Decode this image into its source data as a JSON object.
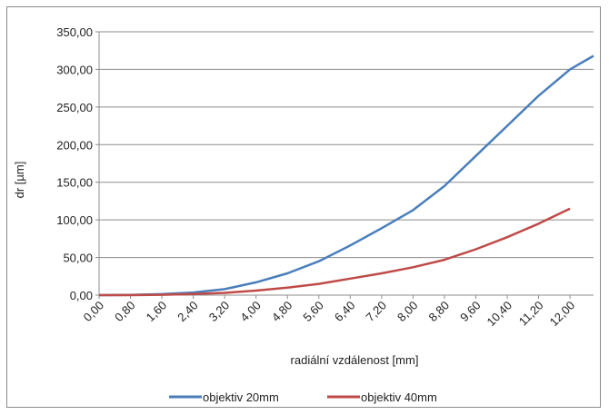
{
  "chart_data": {
    "type": "line",
    "xlabel": "radiální vzdálenost [mm]",
    "ylabel": "dr [µm]",
    "ylim": [
      0,
      350
    ],
    "yticks": [
      "0,00",
      "50,00",
      "100,00",
      "150,00",
      "200,00",
      "250,00",
      "300,00",
      "350,00"
    ],
    "xlim": [
      0,
      12.6
    ],
    "xticks": [
      "0,00",
      "0,80",
      "1,60",
      "2,40",
      "3,20",
      "4,00",
      "4,80",
      "5,60",
      "6,40",
      "7,20",
      "8,00",
      "8,80",
      "9,60",
      "10,40",
      "11,20",
      "12,00"
    ],
    "grid": "horizontal",
    "legend_position": "bottom",
    "series": [
      {
        "name": "objektiv 20mm",
        "color": "#4a7ebb",
        "x": [
          0,
          0.8,
          1.6,
          2.4,
          3.2,
          4.0,
          4.8,
          5.6,
          6.4,
          7.2,
          8.0,
          8.8,
          9.6,
          10.4,
          11.2,
          12.0,
          12.6
        ],
        "y": [
          0,
          0.2,
          1.3,
          3.5,
          8,
          17,
          29,
          45,
          66,
          89,
          113,
          145,
          185,
          225,
          265,
          300,
          318
        ]
      },
      {
        "name": "objektiv 40mm",
        "color": "#be4b48",
        "x": [
          0,
          0.8,
          1.6,
          2.4,
          3.2,
          4.0,
          4.8,
          5.6,
          6.4,
          7.2,
          8.0,
          8.8,
          9.6,
          10.4,
          11.2,
          12.0
        ],
        "y": [
          0,
          0,
          0.5,
          1.5,
          3,
          6,
          10,
          15,
          22,
          29,
          37,
          47,
          61,
          77,
          95,
          115
        ]
      }
    ]
  }
}
